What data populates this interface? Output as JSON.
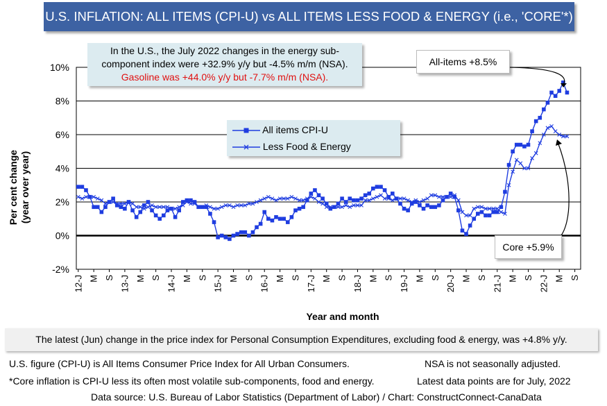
{
  "header": {
    "title": "U.S. INFLATION: ALL ITEMS (CPI-U) vs ALL ITEMS LESS FOOD & ENERGY (i.e., 'CORE'*)"
  },
  "note": {
    "line1": "In the U.S., the July 2022 changes in the energy sub-",
    "line2": "component index were +32.9% y/y but -4.5% m/m (NSA).",
    "line3": "Gasoline was +44.0% y/y but -7.7% m/m (NSA)."
  },
  "callouts": {
    "all_items": "All-items +8.5%",
    "core": "Core +5.9%"
  },
  "bottom_note": "The latest (Jun) change in the price index for Personal Consumption Expenditures, excluding food & energy, was +4.8% y/y.",
  "footer": {
    "line1_left": "U.S. figure (CPI-U) is All Items Consumer Price Index for All Urban Consumers.",
    "line1_right": "NSA is not seasonally adjusted.",
    "line2_left": "*Core inflation is CPI-U less its often most volatile sub-components, food and energy.",
    "line2_right": "Latest data points are for July, 2022",
    "line3": "Data source: U.S. Bureau of Labor Statistics (Department of Labor) / Chart: ConstructConnect-CanaData"
  },
  "colors": {
    "series": "#1f3de0",
    "zero_line": "#000000",
    "grid": "#000000",
    "title_bg": "#3d62a3",
    "note_bg": "#dcebf0",
    "red_text": "#e01010"
  },
  "chart_data": {
    "type": "line",
    "xlabel": "Year and month",
    "ylabel": "Per cent change (year over year)",
    "ylim": [
      -2,
      10
    ],
    "ytick_labels": [
      "-2%",
      "0%",
      "2%",
      "4%",
      "6%",
      "8%",
      "10%"
    ],
    "x_tick_labels": [
      "12-J",
      "M",
      "S",
      "13-J",
      "M",
      "S",
      "14-J",
      "M",
      "S",
      "15-J",
      "M",
      "S",
      "16-J",
      "M",
      "S",
      "17-J",
      "M",
      "S",
      "18-J",
      "M",
      "S",
      "19-J",
      "M",
      "S",
      "20-J",
      "M",
      "S",
      "21-J",
      "M",
      "S",
      "22-J",
      "M",
      "S"
    ],
    "x_start": "2012-01",
    "legend_position": "center",
    "grid": true,
    "series": [
      {
        "name": "All items CPI-U",
        "marker": "square",
        "values": [
          2.9,
          2.9,
          2.7,
          2.3,
          1.7,
          1.7,
          1.4,
          1.7,
          2.0,
          2.2,
          1.8,
          1.7,
          1.6,
          2.0,
          1.5,
          1.1,
          1.4,
          1.8,
          2.0,
          1.5,
          1.2,
          1.0,
          1.2,
          1.5,
          1.6,
          1.1,
          1.5,
          2.0,
          2.1,
          2.1,
          2.0,
          1.7,
          1.7,
          1.7,
          1.3,
          0.8,
          -0.1,
          0.0,
          -0.1,
          -0.2,
          0.0,
          0.1,
          0.2,
          0.2,
          0.0,
          0.2,
          0.5,
          0.7,
          1.4,
          1.0,
          0.9,
          1.1,
          1.0,
          1.0,
          0.8,
          1.1,
          1.5,
          1.6,
          1.7,
          2.1,
          2.5,
          2.7,
          2.4,
          2.2,
          1.9,
          1.6,
          1.7,
          1.9,
          2.2,
          2.0,
          2.2,
          2.1,
          2.1,
          2.2,
          2.4,
          2.5,
          2.8,
          2.9,
          2.9,
          2.7,
          2.3,
          2.5,
          2.2,
          1.9,
          1.6,
          1.5,
          1.9,
          2.0,
          1.8,
          1.6,
          1.8,
          1.7,
          1.7,
          1.8,
          2.1,
          2.3,
          2.5,
          2.3,
          1.5,
          0.3,
          0.1,
          0.6,
          1.0,
          1.3,
          1.4,
          1.2,
          1.2,
          1.4,
          1.4,
          1.7,
          2.6,
          4.2,
          5.0,
          5.4,
          5.4,
          5.3,
          5.4,
          6.2,
          6.8,
          7.0,
          7.5,
          7.9,
          8.5,
          8.3,
          8.6,
          9.1,
          8.5
        ]
      },
      {
        "name": "Less Food & Energy",
        "marker": "x",
        "values": [
          2.3,
          2.2,
          2.3,
          2.3,
          2.3,
          2.2,
          2.1,
          1.9,
          2.0,
          2.0,
          1.9,
          1.9,
          1.9,
          2.0,
          1.9,
          1.7,
          1.7,
          1.6,
          1.7,
          1.8,
          1.7,
          1.7,
          1.7,
          1.7,
          1.6,
          1.6,
          1.7,
          1.8,
          2.0,
          1.9,
          1.9,
          1.7,
          1.7,
          1.8,
          1.7,
          1.6,
          1.6,
          1.7,
          1.8,
          1.8,
          1.7,
          1.8,
          1.8,
          1.8,
          1.9,
          1.9,
          2.0,
          2.1,
          2.2,
          2.3,
          2.2,
          2.1,
          2.2,
          2.2,
          2.2,
          2.3,
          2.2,
          2.1,
          2.1,
          2.2,
          2.3,
          2.2,
          2.0,
          1.9,
          1.7,
          1.7,
          1.7,
          1.7,
          1.7,
          1.8,
          1.7,
          1.8,
          1.8,
          1.8,
          2.1,
          2.1,
          2.2,
          2.3,
          2.4,
          2.2,
          2.2,
          2.1,
          2.2,
          2.2,
          2.2,
          2.1,
          2.0,
          2.1,
          2.0,
          2.1,
          2.2,
          2.4,
          2.4,
          2.3,
          2.3,
          2.3,
          2.3,
          2.4,
          2.1,
          1.4,
          1.2,
          1.2,
          1.6,
          1.7,
          1.7,
          1.6,
          1.6,
          1.6,
          1.6,
          1.4,
          1.3,
          3.0,
          3.8,
          4.5,
          4.3,
          4.0,
          4.0,
          4.6,
          4.9,
          5.5,
          6.0,
          6.4,
          6.5,
          6.2,
          6.0,
          5.9,
          5.9
        ]
      }
    ]
  }
}
